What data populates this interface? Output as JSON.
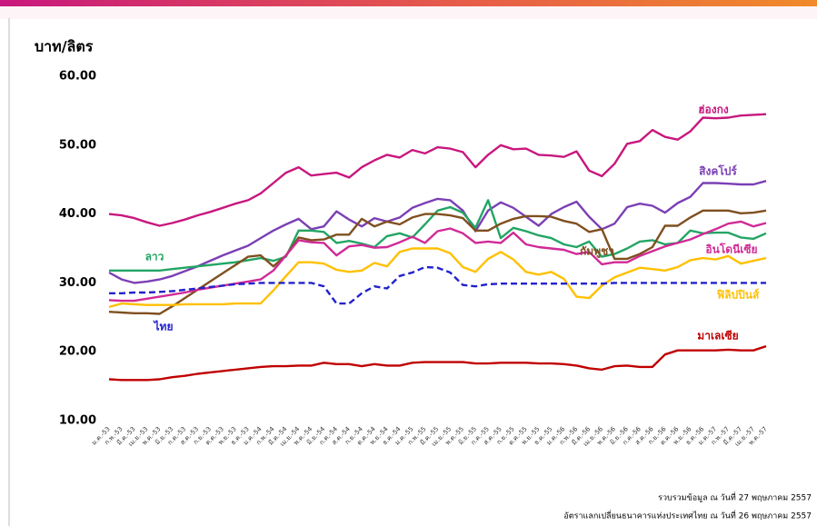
{
  "chart_data": {
    "type": "line",
    "y_label": "บาท/ลิตร",
    "categories": [
      "ม.ค.-53",
      "ก.พ.-53",
      "มี.ค.-53",
      "เม.ย.-53",
      "พ.ค.-53",
      "มิ.ย.-53",
      "ก.ค.-53",
      "ส.ค.-53",
      "ก.ย.-53",
      "ต.ค.-53",
      "พ.ย.-53",
      "ธ.ค.-53",
      "ม.ค.-54",
      "ก.พ.-54",
      "มี.ค.-54",
      "เม.ย.-54",
      "พ.ค.-54",
      "มิ.ย.-54",
      "ก.ค.-54",
      "ส.ค.-54",
      "ก.ย.-54",
      "ต.ค.-54",
      "พ.ย.-54",
      "ธ.ค.-54",
      "ม.ค.-55",
      "ก.พ.-55",
      "มี.ค.-55",
      "เม.ย.-55",
      "พ.ค.-55",
      "มิ.ย.-55",
      "ก.ค.-55",
      "ส.ค.-55",
      "ก.ย.-55",
      "ต.ค.-55",
      "พ.ย.-55",
      "ธ.ค.-55",
      "ม.ค.-56",
      "ก.พ.-56",
      "มี.ค.-56",
      "เม.ย.-56",
      "พ.ค.-56",
      "มิ.ย.-56",
      "ก.ค.-56",
      "ส.ค.-56",
      "ก.ย.-56",
      "ต.ค.-56",
      "พ.ย.-56",
      "ธ.ค.-56",
      "ม.ค.-57",
      "ก.พ.-57",
      "มี.ค.-57",
      "เม.ย.-57",
      "พ.ค.-57"
    ],
    "series": [
      {
        "name": "ฮ่องกง",
        "color": "#c8177e",
        "values": [
          40,
          39.8,
          39.4,
          38.8,
          38.3,
          38.7,
          39.2,
          39.8,
          40.3,
          40.9,
          41.5,
          42,
          43,
          44.5,
          46,
          46.8,
          45.6,
          45.8,
          46,
          45.3,
          46.8,
          47.8,
          48.6,
          48.2,
          49.3,
          48.8,
          49.7,
          49.5,
          49,
          46.8,
          48.6,
          50,
          49.4,
          49.5,
          48.6,
          48.5,
          48.3,
          49.1,
          46.3,
          45.5,
          47.3,
          50.2,
          50.6,
          52.2,
          51.2,
          50.8,
          52,
          54,
          53.9,
          54,
          54.3,
          54.4,
          54.5
        ]
      },
      {
        "name": "สิงคโปร์",
        "color": "#7b3fb5",
        "values": [
          31.5,
          30.5,
          30,
          30.2,
          30.5,
          31,
          31.7,
          32.4,
          33.2,
          34,
          34.7,
          35.4,
          36.5,
          37.6,
          38.5,
          39.3,
          37.8,
          38.2,
          40.4,
          39.2,
          38.2,
          39.4,
          38.9,
          39.5,
          40.9,
          41.6,
          42.2,
          42,
          40.5,
          37.5,
          40.5,
          41.7,
          40.9,
          39.6,
          38.3,
          40,
          41,
          41.8,
          39.6,
          37.8,
          38.6,
          41,
          41.5,
          41.2,
          40.2,
          41.6,
          42.5,
          44.5,
          44.5,
          44.4,
          44.3,
          44.3,
          44.8
        ]
      },
      {
        "name": "ลาว",
        "color": "#22a564",
        "values": [
          31.8,
          31.8,
          31.8,
          31.8,
          31.8,
          32,
          32.2,
          32.4,
          32.6,
          32.8,
          33,
          33.3,
          33.6,
          33.2,
          33.8,
          37.6,
          37.6,
          37.4,
          35.8,
          36.1,
          35.7,
          35.2,
          36.8,
          37.2,
          36.6,
          38.5,
          40.5,
          41,
          40.2,
          38,
          42,
          36.5,
          38,
          37.5,
          36.9,
          36.5,
          35.6,
          35.2,
          36,
          33.8,
          34.2,
          35,
          36,
          36.2,
          35.6,
          35.8,
          37.6,
          37.2,
          37.3,
          37.3,
          36.6,
          36.4,
          37.2
        ]
      },
      {
        "name": "กัมพูชา",
        "color": "#7f4f1f",
        "values": [
          25.8,
          25.7,
          25.6,
          25.6,
          25.5,
          26.6,
          27.8,
          29,
          30.2,
          31.4,
          32.6,
          33.8,
          34,
          32.4,
          34,
          36.6,
          36.2,
          36.3,
          37,
          37,
          39.3,
          38.2,
          38.9,
          38.5,
          39.5,
          40,
          40,
          39.8,
          39.4,
          37.6,
          37.6,
          38.6,
          39.3,
          39.7,
          39.7,
          39.6,
          39,
          38.6,
          37.4,
          37.8,
          33.5,
          33.5,
          34.2,
          35.2,
          38.3,
          38.3,
          39.5,
          40.5,
          40.5,
          40.5,
          40.1,
          40.2,
          40.5
        ]
      },
      {
        "name": "อินโดนีเซีย",
        "color": "#d02a96",
        "values": [
          27.5,
          27.4,
          27.4,
          27.7,
          28,
          28.3,
          28.6,
          29,
          29.3,
          29.6,
          29.9,
          30.2,
          30.5,
          31.8,
          34,
          36.2,
          35.9,
          35.8,
          34,
          35.3,
          35.5,
          35.1,
          35.2,
          35.9,
          36.7,
          35.8,
          37.5,
          37.9,
          37.2,
          35.8,
          36,
          35.8,
          37.3,
          35.6,
          35.2,
          35,
          34.8,
          34.2,
          34.5,
          32.7,
          33,
          33,
          33.9,
          34.6,
          35.3,
          35.8,
          36.3,
          37.1,
          37.8,
          38.6,
          38.9,
          38.2,
          38.7
        ]
      },
      {
        "name": "ฟิลิปปินส์",
        "color": "#ffc000",
        "values": [
          26.5,
          27,
          26.9,
          26.8,
          26.8,
          26.8,
          26.9,
          26.9,
          26.9,
          26.9,
          27,
          27,
          27,
          28.9,
          31,
          33,
          33,
          32.8,
          31.9,
          31.6,
          31.8,
          32.9,
          32.4,
          34.5,
          35,
          35,
          35,
          34.3,
          32.3,
          31.6,
          33.5,
          34.5,
          33.4,
          31.6,
          31.2,
          31.6,
          30.6,
          28,
          27.8,
          29.6,
          30.8,
          31.5,
          32.2,
          32,
          31.8,
          32.3,
          33.3,
          33.6,
          33.4,
          33.9,
          32.8,
          33.2,
          33.6
        ]
      },
      {
        "name": "ไทย",
        "color": "#2222cc",
        "line_style": "dashed",
        "values": [
          28.5,
          28.5,
          28.6,
          28.6,
          28.7,
          28.8,
          29,
          29.2,
          29.4,
          29.6,
          29.8,
          29.9,
          30,
          30,
          30,
          30,
          30,
          29.5,
          27,
          27,
          28.5,
          29.5,
          29.2,
          31,
          31.5,
          32.3,
          32.2,
          31.5,
          29.7,
          29.5,
          29.8,
          29.9,
          29.9,
          29.9,
          29.9,
          29.9,
          29.9,
          29.9,
          29.9,
          29.9,
          30,
          30,
          30,
          30,
          30,
          30,
          30,
          30,
          30,
          30,
          30,
          30,
          30
        ]
      },
      {
        "name": "มาเลเซีย",
        "color": "#c00000",
        "values": [
          16,
          15.9,
          15.9,
          15.9,
          16,
          16.3,
          16.5,
          16.8,
          17,
          17.2,
          17.4,
          17.6,
          17.8,
          17.9,
          17.9,
          18,
          18,
          18.4,
          18.2,
          18.2,
          17.9,
          18.2,
          18,
          18,
          18.4,
          18.5,
          18.5,
          18.5,
          18.5,
          18.3,
          18.3,
          18.4,
          18.4,
          18.4,
          18.3,
          18.3,
          18.2,
          18,
          17.6,
          17.4,
          17.9,
          18,
          17.8,
          17.8,
          19.6,
          20.2,
          20.2,
          20.2,
          20.2,
          20.3,
          20.2,
          20.2,
          20.8
        ]
      }
    ],
    "ylim": [
      10,
      60
    ],
    "yticks": [
      {
        "value": 10,
        "label": "10.00"
      },
      {
        "value": 20,
        "label": "20.00"
      },
      {
        "value": 30,
        "label": "30.00"
      },
      {
        "value": 40,
        "label": "40.00"
      },
      {
        "value": 50,
        "label": "50.00"
      },
      {
        "value": 60,
        "label": "60.00"
      }
    ],
    "grid": false,
    "notes": [
      "รวบรวมข้อมูล ณ วันที่ 27 พฤษภาคม 2557",
      "อัตราแลกเปลี่ยนธนาคารแห่งประเทศไทย  ณ วันที่ 26 พฤษภาคม 2557"
    ]
  }
}
